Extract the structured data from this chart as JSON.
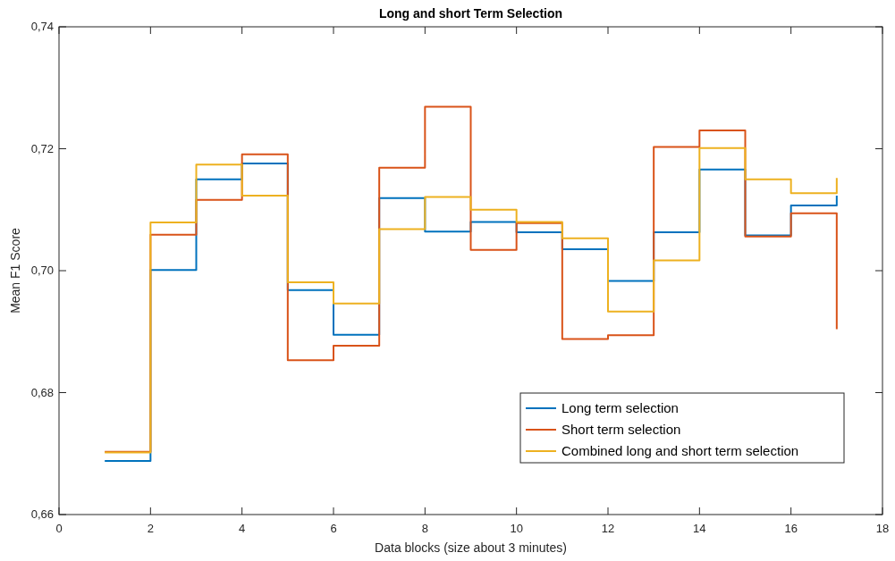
{
  "chart_data": {
    "type": "step",
    "title": "Long and short Term Selection",
    "xlabel": "Data blocks (size about 3 minutes)",
    "ylabel": "Mean F1 Score",
    "x": [
      1,
      2,
      3,
      4,
      5,
      6,
      7,
      8,
      9,
      10,
      11,
      12,
      13,
      14,
      15,
      16,
      17
    ],
    "series": [
      {
        "name": "Long term selection",
        "color": "#0072bd",
        "values": [
          0.6688,
          0.7001,
          0.715,
          0.7176,
          0.6968,
          0.6895,
          0.7119,
          0.7064,
          0.708,
          0.7063,
          0.7035,
          0.6983,
          0.7063,
          0.7166,
          0.7058,
          0.7107,
          0.7123
        ]
      },
      {
        "name": "Short term selection",
        "color": "#d95319",
        "values": [
          0.6703,
          0.7059,
          0.7116,
          0.7191,
          0.6853,
          0.6877,
          0.7169,
          0.7269,
          0.7034,
          0.7078,
          0.6888,
          0.6894,
          0.7203,
          0.723,
          0.7056,
          0.7094,
          0.6904
        ]
      },
      {
        "name": "Combined long and short term selection",
        "color": "#edb120",
        "values": [
          0.6702,
          0.7079,
          0.7174,
          0.7123,
          0.6981,
          0.6946,
          0.7068,
          0.7121,
          0.71,
          0.708,
          0.7053,
          0.6933,
          0.7017,
          0.7201,
          0.715,
          0.7127,
          0.7152
        ]
      }
    ],
    "xlim": [
      0,
      18
    ],
    "xticks": [
      0,
      2,
      4,
      6,
      8,
      10,
      12,
      14,
      16,
      18
    ],
    "ylim": [
      0.66,
      0.74
    ],
    "yticks": [
      {
        "value": 0.66,
        "label": "0,66"
      },
      {
        "value": 0.68,
        "label": "0,68"
      },
      {
        "value": 0.7,
        "label": "0,70"
      },
      {
        "value": 0.72,
        "label": "0,72"
      },
      {
        "value": 0.74,
        "label": "0,74"
      }
    ],
    "legend": "bottom right",
    "grid": false,
    "line_style": "solid"
  }
}
